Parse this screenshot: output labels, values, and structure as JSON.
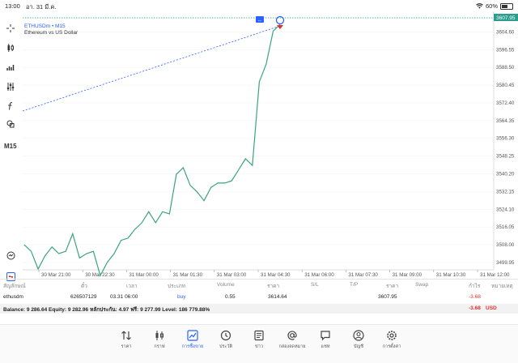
{
  "status_bar": {
    "time": "13:00",
    "date": "อา. 31 มี.ค.",
    "battery": "60%",
    "battery_level": 0.6
  },
  "chart": {
    "symbol": "ETHUSDm • M15",
    "description": "Ethereum vs US Dollar",
    "timeframe": "M15",
    "current_price": "3607.95",
    "price_ticks": [
      "3604.60",
      "3596.55",
      "3588.50",
      "3580.45",
      "3572.40",
      "3564.35",
      "3556.30",
      "3548.25",
      "3540.20",
      "3532.15",
      "3524.10",
      "3516.05",
      "3508.00",
      "3499.95"
    ],
    "time_ticks": [
      "30 Mar 21:00",
      "30 Mar 22:30",
      "31 Mar 00:00",
      "31 Mar 01:30",
      "31 Mar 03:00",
      "31 Mar 04:30",
      "31 Mar 06:00",
      "31 Mar 07:30",
      "31 Mar 09:00",
      "31 Mar 10:30",
      "31 Mar 12:00"
    ],
    "line_color": "#3aa57a",
    "accent_color": "#2a9d8f"
  },
  "chart_data": {
    "type": "line",
    "y": [
      3508,
      3505,
      3497,
      3503,
      3507,
      3504,
      3505,
      3513,
      3502,
      3504,
      3505,
      3494,
      3500,
      3504,
      3510,
      3511,
      3515,
      3518,
      3523,
      3518,
      3523,
      3522,
      3540,
      3543,
      3535,
      3532,
      3528,
      3534,
      3536,
      3536,
      3537,
      3542,
      3547,
      3544,
      3582,
      3590,
      3605,
      3607.95
    ],
    "ylim": [
      3497,
      3611
    ]
  },
  "table": {
    "headers": {
      "symbol": "สัญลักษณ์",
      "ticket": "ตั๋ว",
      "time": "เวลา",
      "type": "ประเภท",
      "volume": "Volume",
      "price": "ราคา",
      "sl": "S/L",
      "tp": "T/P",
      "price2": "ราคา",
      "swap": "Swap",
      "profit": "กำไร",
      "comment": "หมายเหตุ"
    },
    "rows": [
      {
        "symbol": "ethusdm",
        "ticket": "626507129",
        "time": "03.31 06:00",
        "type": "buy",
        "volume": "0.55",
        "open_price": "3614.64",
        "current_price": "3607.95",
        "profit": "-3.68"
      }
    ],
    "balance_text": "Balance: 9 286.64 Equity: 9 282.96 หลักประกัน: 4.97 ฟรี: 9 277.99 Level: 186 779.88%",
    "balance_total": "-3.68",
    "currency": "USD"
  },
  "nav": {
    "items": [
      {
        "label": "ราคา",
        "icon": "sort-arrows-icon"
      },
      {
        "label": "กราฟ",
        "icon": "candles-icon"
      },
      {
        "label": "การซื้อขาย",
        "icon": "trade-chart-icon"
      },
      {
        "label": "ประวัติ",
        "icon": "history-icon"
      },
      {
        "label": "ข่าว",
        "icon": "news-icon"
      },
      {
        "label": "กล่องจดหมาย",
        "icon": "mail-at-icon"
      },
      {
        "label": "แชท",
        "icon": "chat-icon"
      },
      {
        "label": "บัญชี",
        "icon": "account-icon"
      },
      {
        "label": "การตั้งค่า",
        "icon": "settings-gear-icon"
      }
    ],
    "active_index": 2
  }
}
